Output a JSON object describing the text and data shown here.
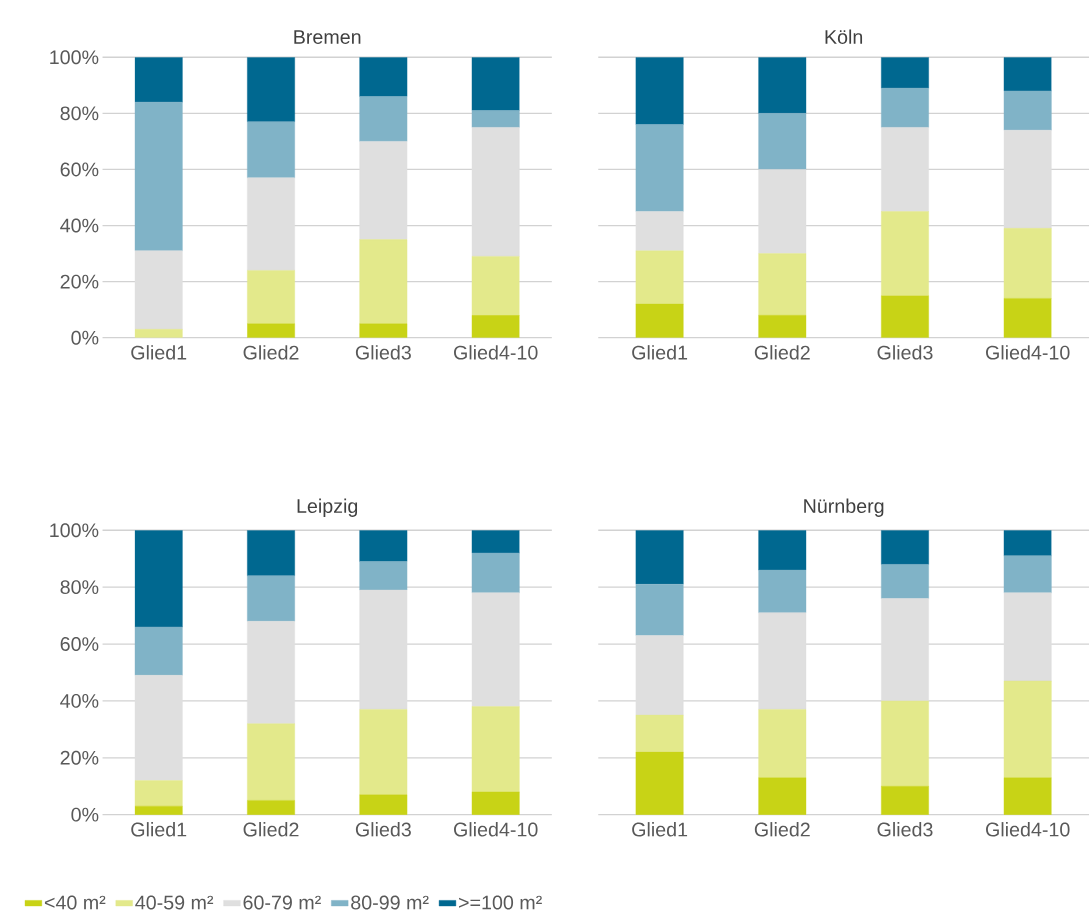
{
  "chart_data": [
    {
      "type": "bar",
      "title": "Bremen",
      "stacked": true,
      "grid": "y",
      "categories": [
        "Glied1",
        "Glied2",
        "Glied3",
        "Glied4-10"
      ],
      "ylim": [
        0,
        100
      ],
      "yticks": [
        {
          "value": 0,
          "label": "0%"
        },
        {
          "value": 20,
          "label": "20%"
        },
        {
          "value": 40,
          "label": "40%"
        },
        {
          "value": 60,
          "label": "60%"
        },
        {
          "value": 80,
          "label": "80%"
        },
        {
          "value": 100,
          "label": "100%"
        }
      ],
      "series": [
        {
          "color": "#c8d316",
          "values": [
            0,
            5,
            5,
            8
          ]
        },
        {
          "color": "#e3e98b",
          "values": [
            3,
            19,
            30,
            21
          ]
        },
        {
          "color": "#dfdfdf",
          "values": [
            28,
            33,
            35,
            46
          ]
        },
        {
          "color": "#80b3c7",
          "values": [
            53,
            20,
            16,
            6
          ]
        },
        {
          "color": "#006890",
          "values": [
            16,
            23,
            14,
            19
          ]
        }
      ]
    },
    {
      "type": "bar",
      "title": "Köln",
      "stacked": true,
      "grid": "y",
      "tick_labels": "x",
      "categories": [
        "Glied1",
        "Glied2",
        "Glied3",
        "Glied4-10"
      ],
      "ylim": [
        0,
        100
      ],
      "yticks": [
        {
          "value": 0,
          "label": null
        },
        {
          "value": 20,
          "label": null
        },
        {
          "value": 40,
          "label": null
        },
        {
          "value": 60,
          "label": null
        },
        {
          "value": 80,
          "label": null
        },
        {
          "value": 100,
          "label": null
        }
      ],
      "series": [
        {
          "color": "#c8d316",
          "values": [
            12,
            8,
            15,
            14
          ]
        },
        {
          "color": "#e3e98b",
          "values": [
            19,
            22,
            30,
            25
          ]
        },
        {
          "color": "#dfdfdf",
          "values": [
            14,
            30,
            30,
            35
          ]
        },
        {
          "color": "#80b3c7",
          "values": [
            31,
            20,
            14,
            14
          ]
        },
        {
          "color": "#006890",
          "values": [
            24,
            20,
            11,
            12
          ]
        }
      ]
    },
    {
      "type": "bar",
      "title": "Leipzig",
      "stacked": true,
      "grid": "y",
      "legend": "bottom",
      "categories": [
        "Glied1",
        "Glied2",
        "Glied3",
        "Glied4-10"
      ],
      "ylim": [
        0,
        100
      ],
      "yticks": [
        {
          "value": 0,
          "label": "0%"
        },
        {
          "value": 20,
          "label": "20%"
        },
        {
          "value": 40,
          "label": "40%"
        },
        {
          "value": 60,
          "label": "60%"
        },
        {
          "value": 80,
          "label": "80%"
        },
        {
          "value": 100,
          "label": "100%"
        }
      ],
      "series": [
        {
          "name": "<40 m²",
          "color": "#c8d316",
          "values": [
            3,
            5,
            7,
            8
          ]
        },
        {
          "name": "40-59 m²",
          "color": "#e3e98b",
          "values": [
            9,
            27,
            30,
            30
          ]
        },
        {
          "name": "60-79 m²",
          "color": "#dfdfdf",
          "values": [
            37,
            36,
            42,
            40
          ]
        },
        {
          "name": "80-99 m²",
          "color": "#80b3c7",
          "values": [
            17,
            16,
            10,
            14
          ]
        },
        {
          "name": ">=100 m²",
          "color": "#006890",
          "values": [
            34,
            16,
            11,
            8
          ]
        }
      ]
    },
    {
      "type": "bar",
      "title": "Nürnberg",
      "stacked": true,
      "grid": "y",
      "tick_labels": "x",
      "categories": [
        "Glied1",
        "Glied2",
        "Glied3",
        "Glied4-10"
      ],
      "ylim": [
        0,
        100
      ],
      "yticks": [
        {
          "value": 0,
          "label": null
        },
        {
          "value": 20,
          "label": null
        },
        {
          "value": 40,
          "label": null
        },
        {
          "value": 60,
          "label": null
        },
        {
          "value": 80,
          "label": null
        },
        {
          "value": 100,
          "label": null
        }
      ],
      "series": [
        {
          "color": "#c8d316",
          "values": [
            22,
            13,
            10,
            13
          ]
        },
        {
          "color": "#e3e98b",
          "values": [
            13,
            24,
            30,
            34
          ]
        },
        {
          "color": "#dfdfdf",
          "values": [
            28,
            34,
            36,
            31
          ]
        },
        {
          "color": "#80b3c7",
          "values": [
            18,
            15,
            12,
            13
          ]
        },
        {
          "color": "#006890",
          "values": [
            19,
            14,
            12,
            9
          ]
        }
      ]
    }
  ]
}
